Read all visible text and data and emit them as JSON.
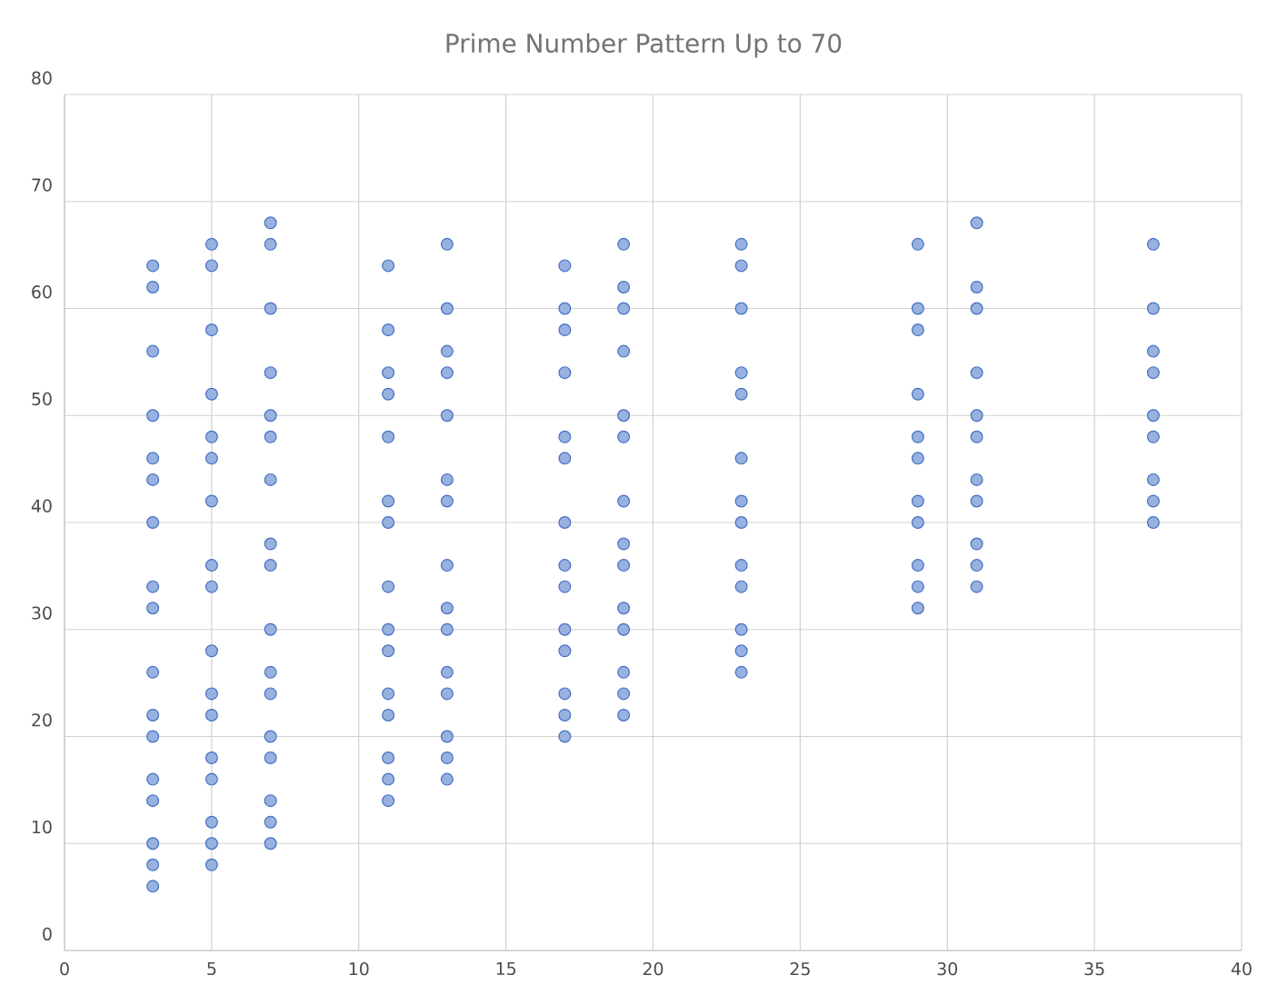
{
  "chart_data": {
    "type": "scatter",
    "title": "Prime Number Pattern Up to 70",
    "x": [
      3,
      3,
      3,
      3,
      3,
      3,
      3,
      3,
      3,
      3,
      3,
      3,
      3,
      3,
      3,
      3,
      3,
      5,
      5,
      5,
      5,
      5,
      5,
      5,
      5,
      5,
      5,
      5,
      5,
      5,
      5,
      5,
      5,
      5,
      7,
      7,
      7,
      7,
      7,
      7,
      7,
      7,
      7,
      7,
      7,
      7,
      7,
      7,
      7,
      7,
      7,
      11,
      11,
      11,
      11,
      11,
      11,
      11,
      11,
      11,
      11,
      11,
      11,
      11,
      11,
      11,
      13,
      13,
      13,
      13,
      13,
      13,
      13,
      13,
      13,
      13,
      13,
      13,
      13,
      13,
      13,
      17,
      17,
      17,
      17,
      17,
      17,
      17,
      17,
      17,
      17,
      17,
      17,
      17,
      17,
      19,
      19,
      19,
      19,
      19,
      19,
      19,
      19,
      19,
      19,
      19,
      19,
      19,
      19,
      23,
      23,
      23,
      23,
      23,
      23,
      23,
      23,
      23,
      23,
      23,
      23,
      23,
      29,
      29,
      29,
      29,
      29,
      29,
      29,
      29,
      29,
      29,
      29,
      31,
      31,
      31,
      31,
      31,
      31,
      31,
      31,
      31,
      31,
      31,
      37,
      37,
      37,
      37,
      37,
      37,
      37,
      37,
      37
    ],
    "values": [
      64,
      62,
      56,
      50,
      46,
      44,
      40,
      34,
      32,
      26,
      22,
      20,
      16,
      14,
      10,
      8,
      6,
      66,
      64,
      58,
      52,
      48,
      46,
      42,
      36,
      34,
      28,
      24,
      22,
      18,
      16,
      12,
      10,
      8,
      68,
      66,
      60,
      54,
      50,
      48,
      44,
      38,
      36,
      30,
      26,
      24,
      20,
      18,
      14,
      12,
      10,
      64,
      58,
      54,
      52,
      48,
      42,
      40,
      34,
      30,
      28,
      24,
      22,
      18,
      16,
      14,
      66,
      60,
      56,
      54,
      50,
      44,
      42,
      36,
      32,
      30,
      26,
      24,
      20,
      18,
      16,
      64,
      60,
      58,
      54,
      48,
      46,
      40,
      36,
      34,
      30,
      28,
      24,
      22,
      20,
      66,
      62,
      60,
      56,
      50,
      48,
      42,
      38,
      36,
      32,
      30,
      26,
      24,
      22,
      66,
      64,
      60,
      54,
      52,
      46,
      42,
      40,
      36,
      34,
      30,
      28,
      26,
      66,
      60,
      58,
      52,
      48,
      46,
      42,
      40,
      36,
      34,
      32,
      68,
      62,
      60,
      54,
      50,
      48,
      44,
      42,
      38,
      36,
      34,
      66,
      60,
      56,
      54,
      50,
      48,
      44,
      42,
      40
    ],
    "color": "#4472c4",
    "marker": "circle",
    "grid": true,
    "xlim": [
      0,
      40
    ],
    "ylim": [
      0,
      80
    ],
    "xticks": [
      0,
      5,
      10,
      15,
      20,
      25,
      30,
      35,
      40
    ],
    "yticks": [
      0,
      10,
      20,
      30,
      40,
      50,
      60,
      70,
      80
    ]
  }
}
